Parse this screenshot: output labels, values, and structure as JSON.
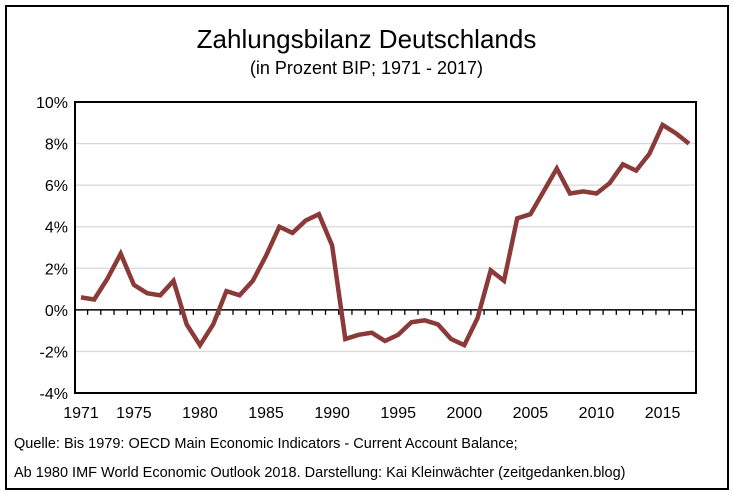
{
  "chart_data": {
    "type": "line",
    "title": "Zahlungsbilanz Deutschlands",
    "subtitle": "(in Prozent BIP; 1971 - 2017)",
    "xlabel": "",
    "ylabel": "",
    "ylim": [
      -4,
      10
    ],
    "xlim": [
      1971,
      2017
    ],
    "grid": true,
    "legend": "none",
    "y_ticks": [
      "-4%",
      "-2%",
      "0%",
      "2%",
      "4%",
      "6%",
      "8%",
      "10%"
    ],
    "x_ticks": [
      "1971",
      "1975",
      "1980",
      "1985",
      "1990",
      "1995",
      "2000",
      "2005",
      "2010",
      "2015"
    ],
    "line_color": "#8B3A3A",
    "x": [
      1971,
      1972,
      1973,
      1974,
      1975,
      1976,
      1977,
      1978,
      1979,
      1980,
      1981,
      1982,
      1983,
      1984,
      1985,
      1986,
      1987,
      1988,
      1989,
      1990,
      1991,
      1992,
      1993,
      1994,
      1995,
      1996,
      1997,
      1998,
      1999,
      2000,
      2001,
      2002,
      2003,
      2004,
      2005,
      2006,
      2007,
      2008,
      2009,
      2010,
      2011,
      2012,
      2013,
      2014,
      2015,
      2016,
      2017
    ],
    "values": [
      0.6,
      0.5,
      1.5,
      2.7,
      1.2,
      0.8,
      0.7,
      1.4,
      -0.7,
      -1.7,
      -0.7,
      0.9,
      0.7,
      1.4,
      2.6,
      4.0,
      3.7,
      4.3,
      4.6,
      3.1,
      -1.4,
      -1.2,
      -1.1,
      -1.5,
      -1.2,
      -0.6,
      -0.5,
      -0.7,
      -1.4,
      -1.7,
      -0.4,
      1.9,
      1.4,
      4.4,
      4.6,
      5.7,
      6.8,
      5.6,
      5.7,
      5.6,
      6.1,
      7.0,
      6.7,
      7.5,
      8.9,
      8.5,
      8.0
    ]
  },
  "footer": {
    "source_line1": "Quelle: Bis 1979: OECD Main Economic Indicators - Current Account Balance;",
    "source_line2": "Ab 1980 IMF World Economic Outlook 2018. Darstellung: Kai Kleinwächter (zeitgedanken.blog)"
  }
}
